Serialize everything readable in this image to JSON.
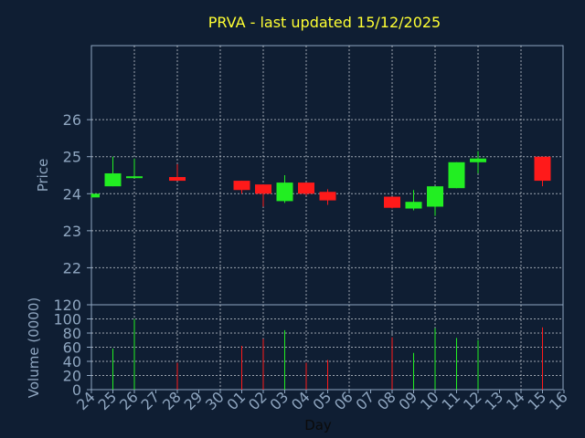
{
  "chart_data": {
    "type": "candlestick",
    "title": "PRVA - last updated 15/12/2025",
    "xlabel": "Day",
    "price_panel": {
      "ylabel": "Price",
      "ylim": [
        21,
        28
      ],
      "yticks": [
        22,
        23,
        24,
        25,
        26
      ],
      "grid": true
    },
    "volume_panel": {
      "ylabel": "Volume (0000)",
      "ylim": [
        0,
        120
      ],
      "yticks": [
        0,
        20,
        40,
        60,
        80,
        100,
        120
      ],
      "grid": true
    },
    "day_ticks": [
      "24",
      "25",
      "26",
      "27",
      "28",
      "29",
      "30",
      "01",
      "02",
      "03",
      "04",
      "05",
      "06",
      "07",
      "08",
      "09",
      "10",
      "11",
      "12",
      "13",
      "14",
      "15",
      "16"
    ],
    "candles": [
      {
        "day": "24",
        "open": 23.9,
        "high": 24.0,
        "low": 23.9,
        "close": 24.0,
        "volume": 0
      },
      {
        "day": "25",
        "open": 24.2,
        "high": 25.0,
        "low": 24.2,
        "close": 24.55,
        "volume": 58
      },
      {
        "day": "26",
        "open": 24.43,
        "high": 24.95,
        "low": 24.43,
        "close": 24.47,
        "volume": 100
      },
      {
        "day": "28",
        "open": 24.45,
        "high": 24.8,
        "low": 24.35,
        "close": 24.35,
        "volume": 38
      },
      {
        "day": "01",
        "open": 24.35,
        "high": 24.35,
        "low": 24.0,
        "close": 24.1,
        "volume": 62
      },
      {
        "day": "02",
        "open": 24.25,
        "high": 24.25,
        "low": 23.65,
        "close": 24.0,
        "volume": 72
      },
      {
        "day": "03",
        "open": 23.8,
        "high": 24.5,
        "low": 23.75,
        "close": 24.3,
        "volume": 84
      },
      {
        "day": "04",
        "open": 24.3,
        "high": 24.3,
        "low": 23.95,
        "close": 24.0,
        "volume": 38
      },
      {
        "day": "05",
        "open": 24.05,
        "high": 24.12,
        "low": 23.7,
        "close": 23.82,
        "volume": 42
      },
      {
        "day": "08",
        "open": 23.92,
        "high": 23.92,
        "low": 23.6,
        "close": 23.62,
        "volume": 74
      },
      {
        "day": "09",
        "open": 23.6,
        "high": 24.1,
        "low": 23.55,
        "close": 23.78,
        "volume": 52
      },
      {
        "day": "10",
        "open": 23.65,
        "high": 24.2,
        "low": 23.4,
        "close": 24.2,
        "volume": 87
      },
      {
        "day": "11",
        "open": 24.15,
        "high": 24.85,
        "low": 24.15,
        "close": 24.85,
        "volume": 73
      },
      {
        "day": "12",
        "open": 24.85,
        "high": 25.15,
        "low": 24.55,
        "close": 24.95,
        "volume": 70
      },
      {
        "day": "15",
        "open": 25.0,
        "high": 25.0,
        "low": 24.2,
        "close": 24.35,
        "volume": 88
      }
    ],
    "colors": {
      "up": "#22ee22",
      "down": "#ff1a1a",
      "background": "#0f1e33",
      "axis": "#8fa6c0",
      "grid": "#d8dde4",
      "title": "#ffff33"
    }
  }
}
